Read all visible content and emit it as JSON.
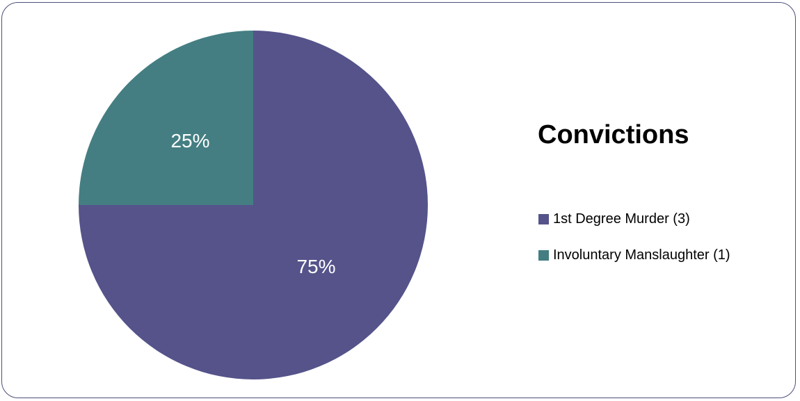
{
  "chart_data": {
    "type": "pie",
    "title": "Convictions",
    "categories": [
      "1st Degree Murder (3)",
      "Involuntary Manslaughter (1)"
    ],
    "values": [
      3,
      1
    ],
    "percent_labels": [
      "75%",
      "25%"
    ],
    "colors": [
      "#55538a",
      "#447e82"
    ],
    "legend_position": "right"
  }
}
